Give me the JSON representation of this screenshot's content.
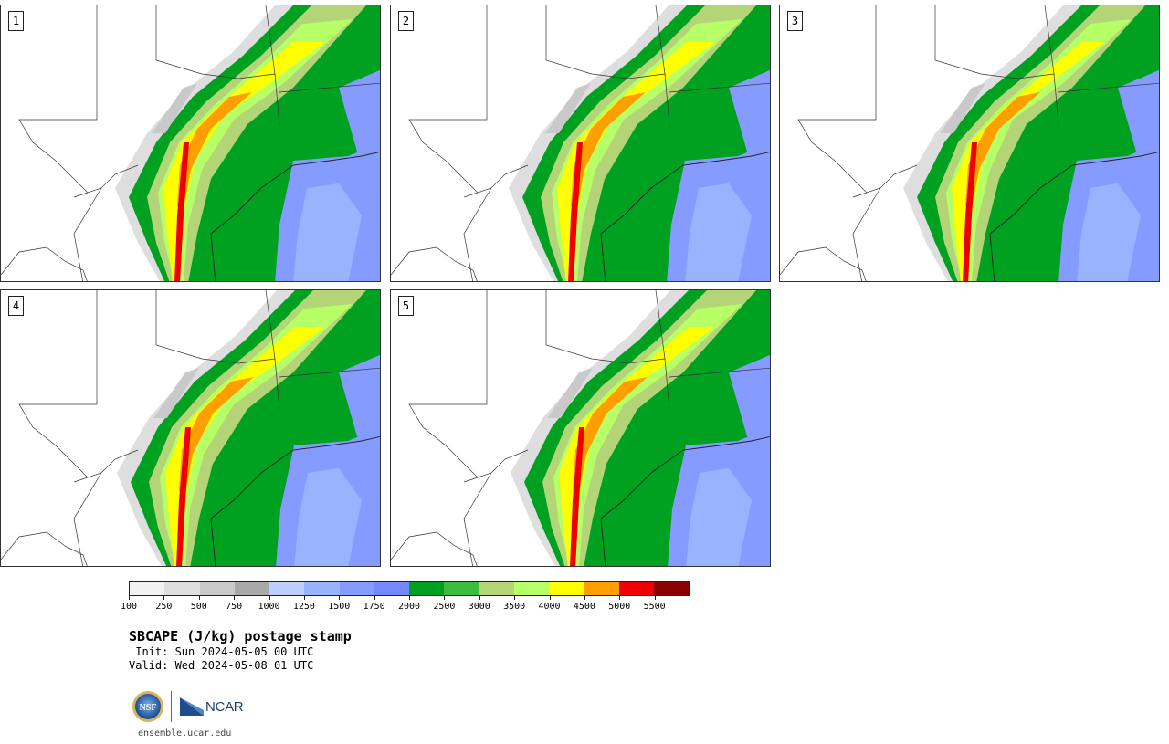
{
  "panels": [
    {
      "label": "1"
    },
    {
      "label": "2"
    },
    {
      "label": "3"
    },
    {
      "label": "4"
    },
    {
      "label": "5"
    }
  ],
  "colorbar": {
    "colors": [
      "#f2f2f2",
      "#dedede",
      "#c9c9c9",
      "#a9a9a9",
      "#bdcfff",
      "#98b4ff",
      "#869bff",
      "#7489ff",
      "#00a020",
      "#3dbb3d",
      "#b4d478",
      "#b7ff66",
      "#ffff00",
      "#ff9e00",
      "#ee0000",
      "#8c0000"
    ],
    "ticks": [
      "100",
      "250",
      "500",
      "750",
      "1000",
      "1250",
      "1500",
      "1750",
      "2000",
      "2500",
      "3000",
      "3500",
      "4000",
      "4500",
      "5000",
      "5500"
    ]
  },
  "title": "SBCAPE (J/kg) postage stamp",
  "init": " Init: Sun 2024-05-05 00 UTC",
  "valid": "Valid: Wed 2024-05-08 01 UTC",
  "logos": {
    "nsf_text": "NSF",
    "ncar_text": "NCAR"
  },
  "url": "ensemble.ucar.edu"
}
